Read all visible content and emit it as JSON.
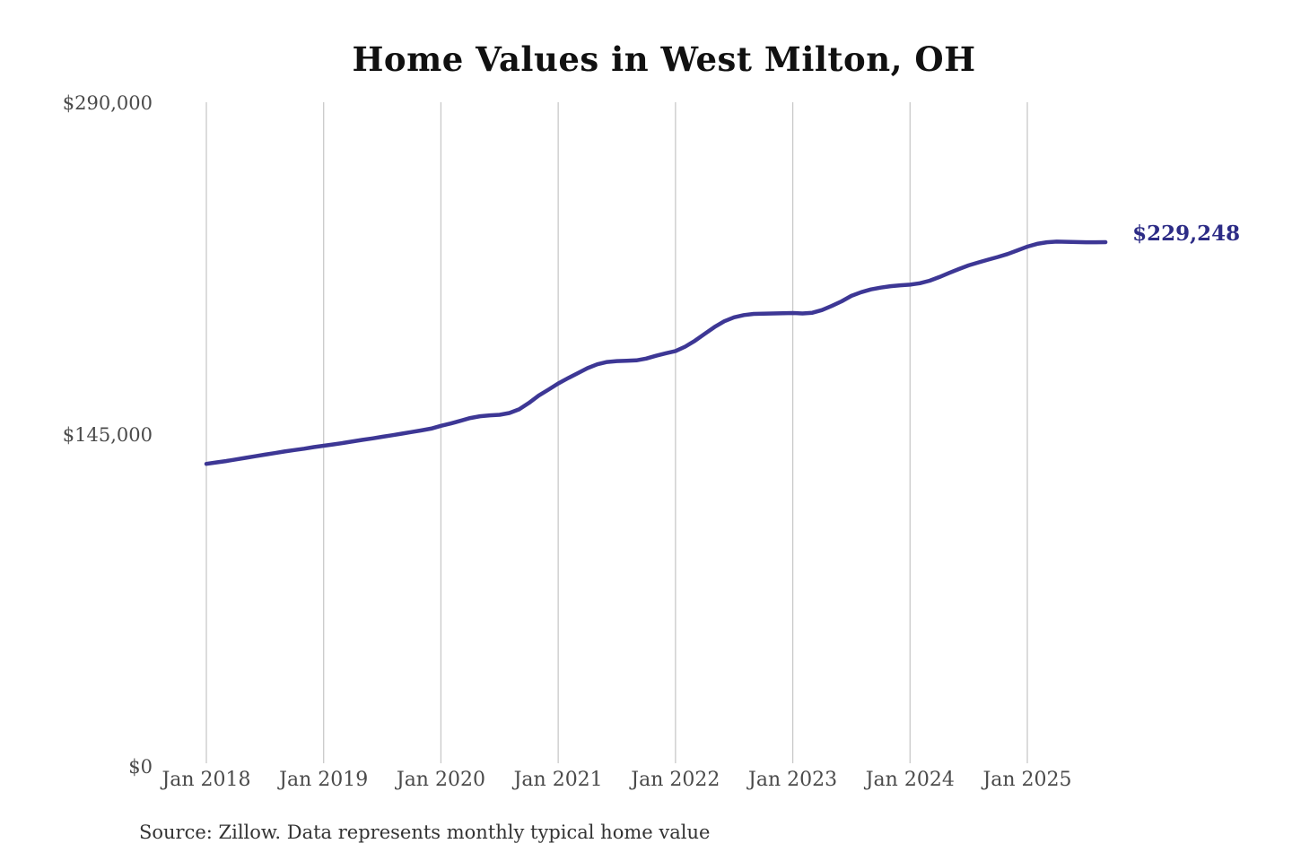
{
  "title": "Home Values in West Milton, OH",
  "source_note": "Source: Zillow. Data represents monthly typical home value",
  "end_label": "$229,248",
  "colors": {
    "line": "#3d3795",
    "end_label": "#2d2c86",
    "grid": "#c9c9c9",
    "axis_text": "#4a4a4a",
    "title_text": "#111111",
    "source_text": "#333333",
    "background": "#ffffff"
  },
  "chart_data": {
    "type": "line",
    "title": "Home Values in West Milton, OH",
    "x_start": "2018-01",
    "x_end": "2025-09",
    "frequency": "monthly",
    "ylim": [
      0,
      290000
    ],
    "grid": "vertical-only",
    "legend": "none",
    "x_tick_labels": [
      "Jan 2018",
      "Jan 2019",
      "Jan 2020",
      "Jan 2021",
      "Jan 2022",
      "Jan 2023",
      "Jan 2024",
      "Jan 2025"
    ],
    "y_ticks": [
      {
        "label": "$290,000",
        "value": 290000
      },
      {
        "label": "$145,000",
        "value": 145000
      },
      {
        "label": "$0",
        "value": 0
      }
    ],
    "last_value_label": "$229,248",
    "series": [
      {
        "name": "Monthly typical home value",
        "values": [
          132400,
          133000,
          133600,
          134300,
          135000,
          135700,
          136400,
          137100,
          137800,
          138400,
          139000,
          139700,
          140300,
          140900,
          141500,
          142200,
          142900,
          143500,
          144200,
          144900,
          145600,
          146300,
          147000,
          147800,
          149000,
          150000,
          151200,
          152400,
          153200,
          153600,
          153800,
          154600,
          156200,
          159000,
          162200,
          164800,
          167500,
          169800,
          172000,
          174200,
          175900,
          176900,
          177300,
          177400,
          177600,
          178400,
          179600,
          180700,
          181700,
          183600,
          186200,
          189200,
          192200,
          194700,
          196400,
          197400,
          197900,
          198000,
          198100,
          198200,
          198300,
          198100,
          198400,
          199600,
          201400,
          203400,
          205800,
          207400,
          208600,
          209400,
          210000,
          210400,
          210700,
          211300,
          212400,
          214000,
          215800,
          217500,
          219100,
          220400,
          221600,
          222800,
          224100,
          225700,
          227300,
          228500,
          229200,
          229500,
          229400,
          229300,
          229200,
          229200,
          229248
        ]
      }
    ]
  }
}
